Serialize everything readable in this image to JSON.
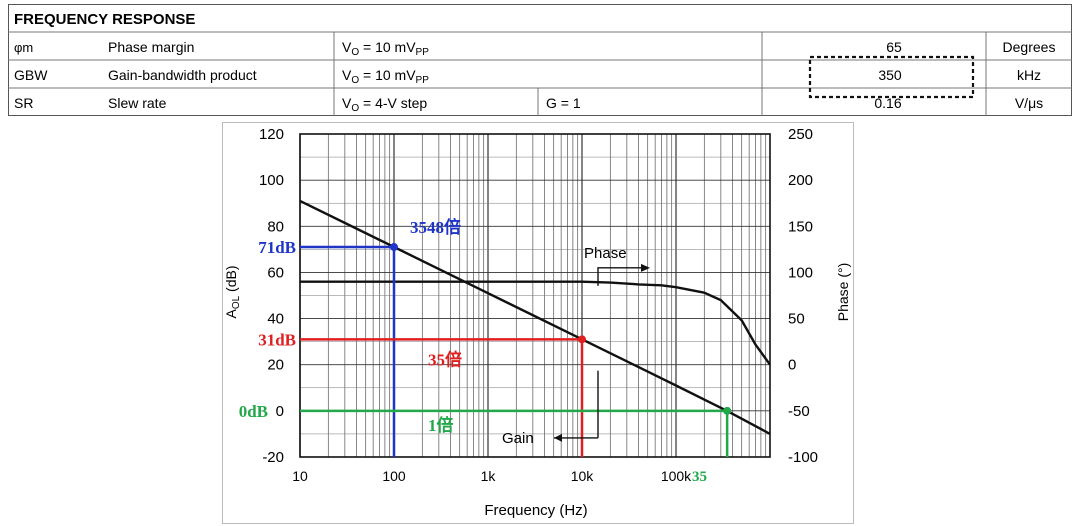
{
  "table": {
    "header": "FREQUENCY RESPONSE",
    "rows": [
      {
        "symbol": "φm",
        "parameter": "Phase margin",
        "condition_main": "V",
        "condition_sub": "O",
        "condition_rest": " = 10 mV",
        "condition_unit_sub": "PP",
        "condition2": "",
        "value": "65",
        "unit": "Degrees"
      },
      {
        "symbol": "GBW",
        "parameter": "Gain-bandwidth product",
        "condition_main": "V",
        "condition_sub": "O",
        "condition_rest": " = 10 mV",
        "condition_unit_sub": "PP",
        "condition2": "",
        "value": "350",
        "unit": "kHz"
      },
      {
        "symbol": "SR",
        "parameter": "Slew rate",
        "condition_main": "V",
        "condition_sub": "O",
        "condition_rest": " = 4-V step",
        "condition_unit_sub": "",
        "condition2": "G = 1",
        "value": "0.16",
        "unit": "V/μs"
      }
    ]
  },
  "chart_data": {
    "type": "line",
    "xlabel": "Frequency (Hz)",
    "ylabel_left": "A",
    "ylabel_left_sub": "OL",
    "ylabel_left_unit": " (dB)",
    "ylabel_right": "Phase (°)",
    "x_scale": "log",
    "xlim": [
      10,
      1000000
    ],
    "x_ticks": [
      10,
      100,
      1000,
      10000,
      100000
    ],
    "x_tick_labels": [
      "10",
      "100",
      "1k",
      "10k",
      "100k"
    ],
    "ylim_left": [
      -20,
      120
    ],
    "y_ticks_left": [
      -20,
      0,
      20,
      40,
      60,
      80,
      100,
      120
    ],
    "y_tick_labels_left": [
      "-20",
      "0",
      "20",
      "40",
      "60",
      "80",
      "100",
      "120"
    ],
    "ylim_right": [
      -100,
      250
    ],
    "y_ticks_right": [
      -100,
      -50,
      0,
      50,
      100,
      150,
      200,
      250
    ],
    "y_tick_labels_right": [
      "-100",
      "-50",
      "0",
      "50",
      "100",
      "150",
      "200",
      "250"
    ],
    "grid": true,
    "series": [
      {
        "name": "Gain",
        "axis": "left",
        "x": [
          10,
          100,
          1000,
          10000,
          100000,
          350000,
          1000000
        ],
        "y": [
          91,
          71,
          51,
          31,
          11,
          0,
          -10
        ]
      },
      {
        "name": "Phase",
        "axis": "right",
        "x": [
          10,
          100,
          1000,
          10000,
          20000,
          40000,
          70000,
          100000,
          200000,
          300000,
          500000,
          700000,
          1000000
        ],
        "y": [
          90,
          90,
          90,
          90,
          89,
          87,
          86,
          84,
          78,
          70,
          48,
          22,
          0
        ]
      }
    ],
    "annotations": {
      "gain_label": "Gain",
      "phase_label": "Phase",
      "markers": [
        {
          "x": 100,
          "y": 71,
          "db_label": "71dB",
          "ratio_label": "3548倍",
          "color": "#1f35c8"
        },
        {
          "x": 10000,
          "y": 31,
          "db_label": "31dB",
          "ratio_label": "35倍",
          "color": "#e02020"
        },
        {
          "x": 350000,
          "y": 0,
          "db_label": "0dB",
          "ratio_label": "1倍",
          "color": "#22a84a"
        }
      ],
      "x_marker_label": "35",
      "x_marker_label_color": "#22a84a"
    }
  }
}
